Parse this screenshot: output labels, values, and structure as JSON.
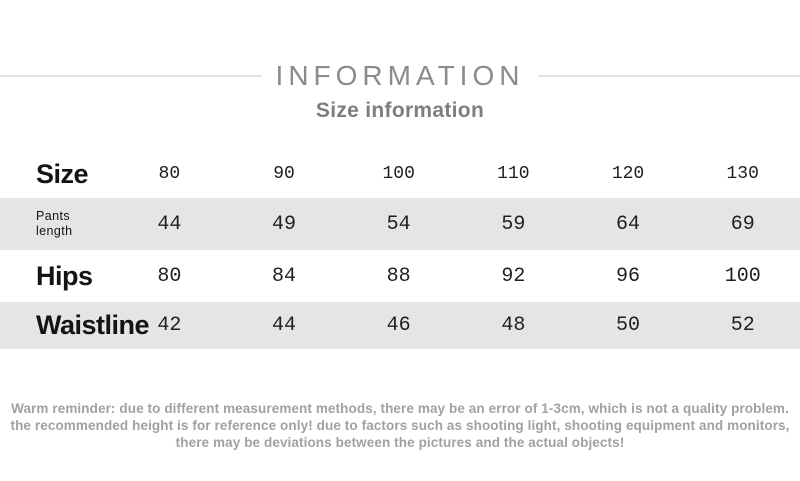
{
  "header": {
    "title": "INFORMATION",
    "subtitle": "Size information"
  },
  "size_table": {
    "rows": [
      {
        "label": "Size",
        "values": [
          "80",
          "90",
          "100",
          "110",
          "120",
          "130"
        ]
      },
      {
        "label": "Pants length",
        "values": [
          "44",
          "49",
          "54",
          "59",
          "64",
          "69"
        ]
      },
      {
        "label": "Hips",
        "values": [
          "80",
          "84",
          "88",
          "92",
          "96",
          "100"
        ]
      },
      {
        "label": "Waistline",
        "values": [
          "42",
          "44",
          "46",
          "48",
          "50",
          "52"
        ]
      }
    ]
  },
  "reminder": {
    "lines": [
      "Warm reminder: due to different measurement methods, there may be an error of 1-3cm, which is not a quality problem.",
      "the recommended height is for reference only! due to factors such as shooting light, shooting equipment and monitors,",
      "there may be deviations between the pictures and the actual objects!"
    ]
  },
  "colors": {
    "row_shade": "#e5e5e5",
    "title_gray": "#8b8b8b",
    "reminder_gray": "#a1a1a1",
    "label_black": "#141414"
  }
}
